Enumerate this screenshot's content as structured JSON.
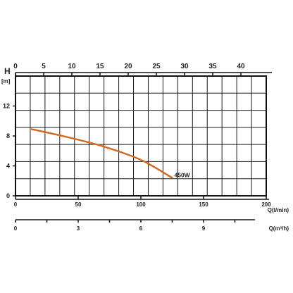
{
  "chart_data": {
    "type": "line",
    "y_label": "H",
    "y_unit": "[m]",
    "y_ticks": [
      0,
      4,
      8,
      12
    ],
    "ylim": [
      0,
      16
    ],
    "top_axis": {
      "ticks": [
        0,
        5,
        10,
        15,
        20,
        25,
        30,
        35,
        40
      ],
      "range": [
        0,
        44.5
      ]
    },
    "bottom_axis": {
      "label": "Q(l/min)",
      "ticks": [
        0,
        50,
        100,
        150,
        200
      ],
      "range": [
        0,
        200
      ]
    },
    "third_axis": {
      "label": "Q(m³/h)",
      "ticks": [
        0,
        3,
        6,
        9
      ],
      "minor_step": 1.5,
      "range": [
        0,
        12
      ]
    },
    "grid": true,
    "series": [
      {
        "name": "450W",
        "color": "#d2691e",
        "points": [
          [
            13,
            8.9
          ],
          [
            40,
            7.9
          ],
          [
            70,
            6.6
          ],
          [
            100,
            4.8
          ],
          [
            125,
            2.4
          ]
        ]
      }
    ]
  }
}
